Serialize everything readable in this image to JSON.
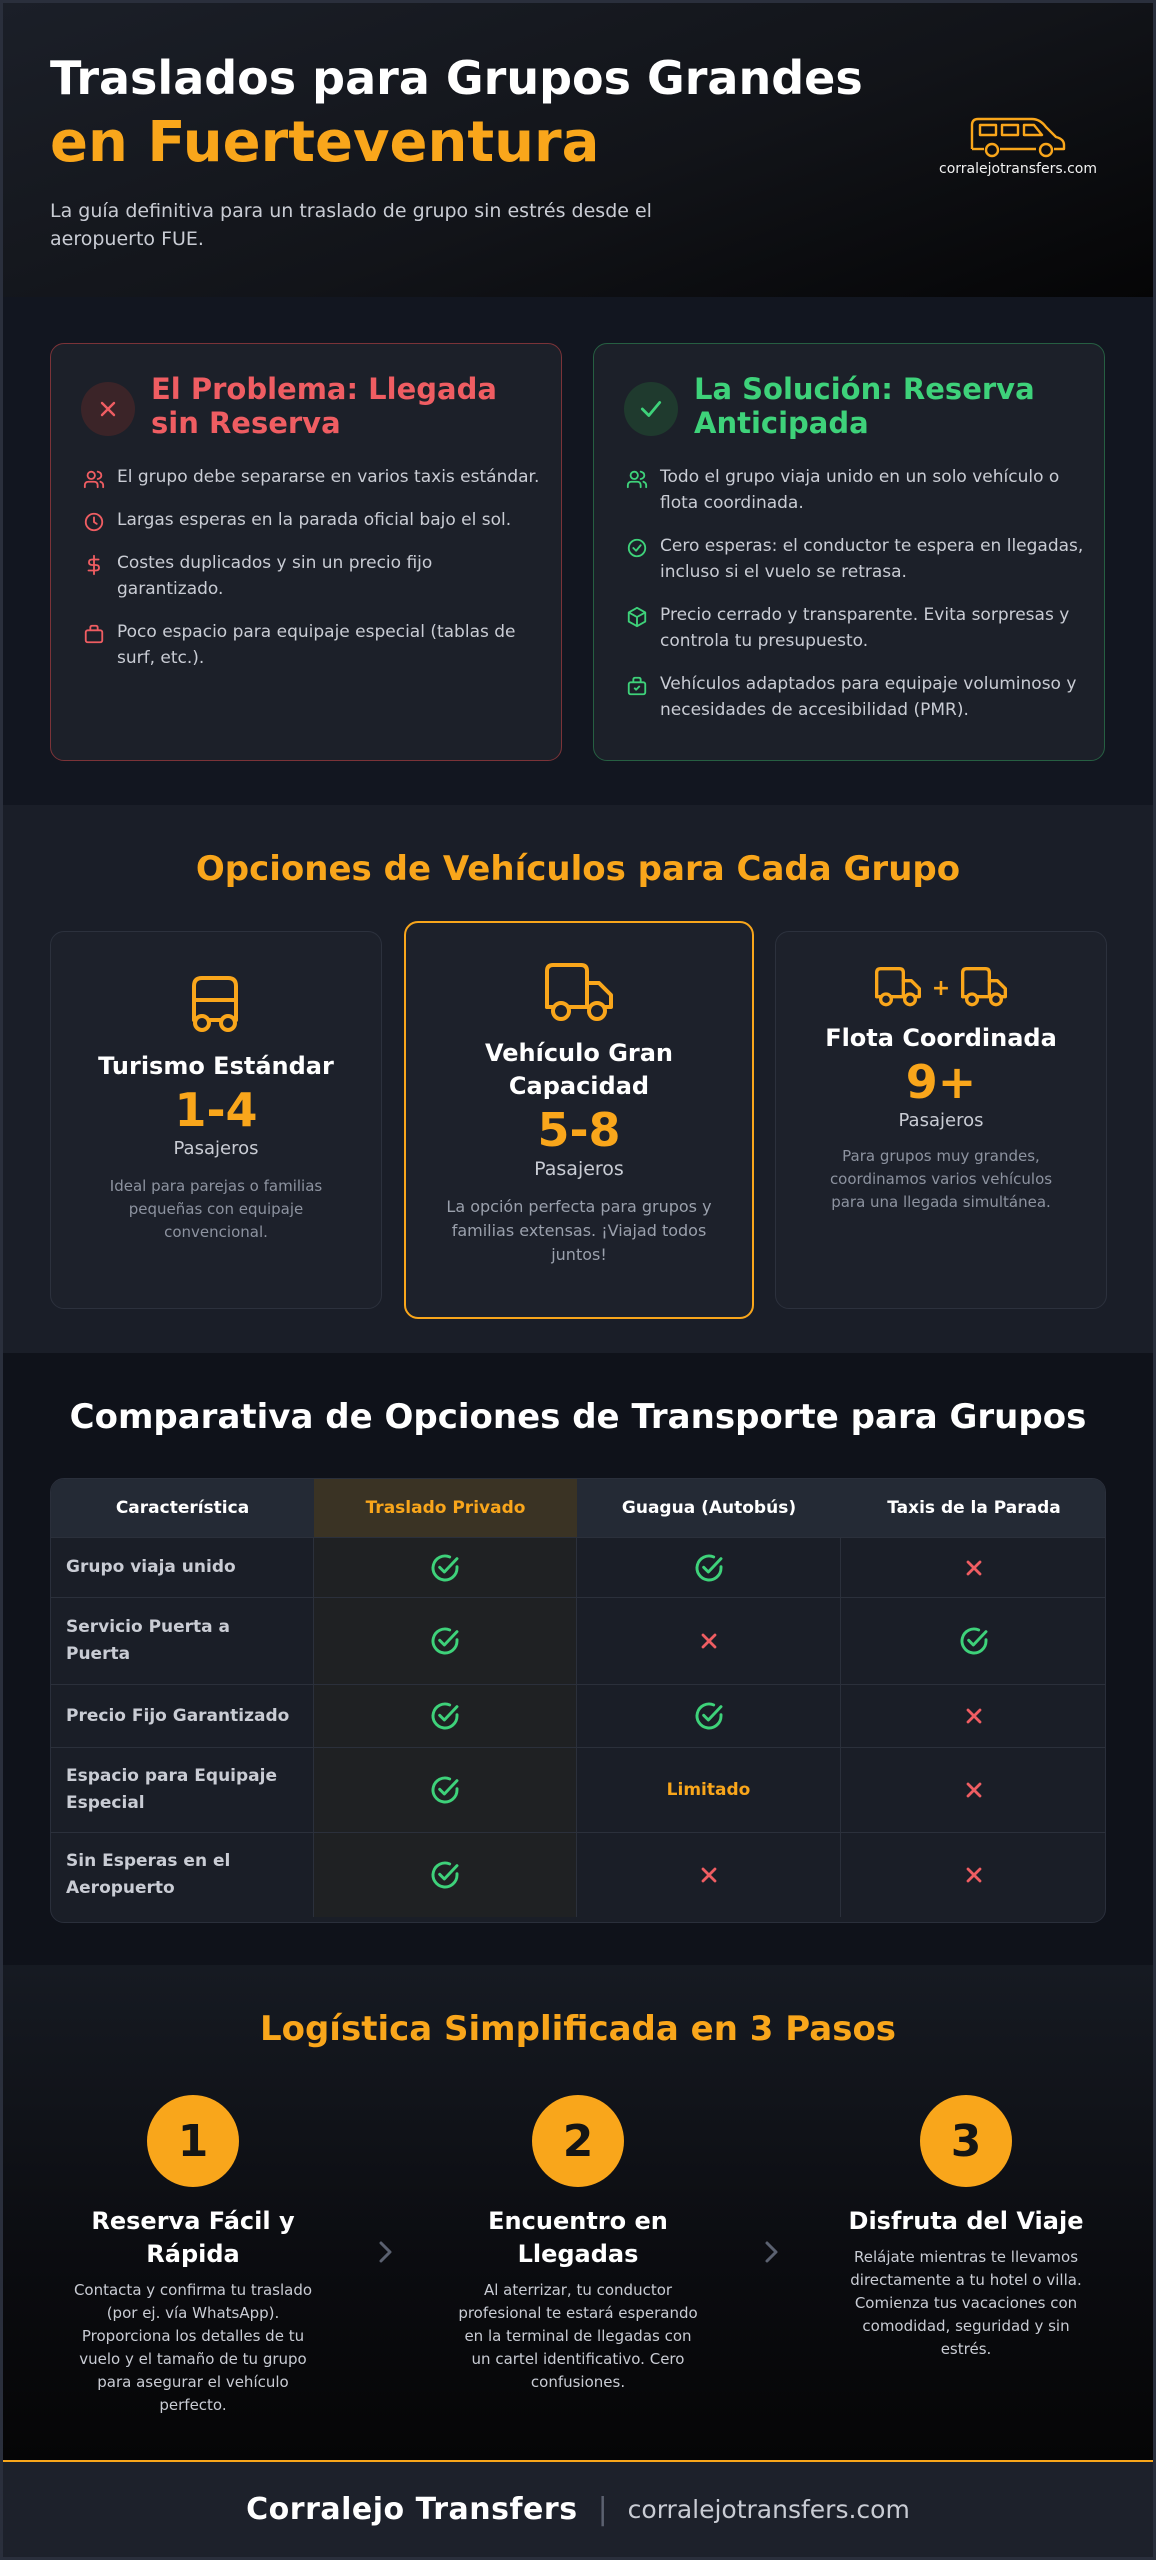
{
  "colors": {
    "accent": "#f9a61b",
    "problem": "#ef5d62",
    "solution": "#3ed27a",
    "background": "#151923"
  },
  "header": {
    "title_line1": "Traslados para Grupos Grandes",
    "title_line2": "en Fuerteventura",
    "subtitle": "La guía definitiva para un traslado de grupo sin estrés desde el aeropuerto FUE.",
    "logo_icon": "van-icon",
    "logo_url": "corralejotransfers.com"
  },
  "problem": {
    "badge_icon": "x-icon",
    "title": "El Problema: Llegada sin Reserva",
    "items": [
      {
        "icon": "users-icon",
        "text": "El grupo debe separarse en varios taxis estándar."
      },
      {
        "icon": "clock-icon",
        "text": "Largas esperas en la parada oficial bajo el sol."
      },
      {
        "icon": "dollar-icon",
        "text": "Costes duplicados y sin un precio fijo garantizado."
      },
      {
        "icon": "luggage-icon",
        "text": "Poco espacio para equipaje especial (tablas de surf, etc.)."
      }
    ]
  },
  "solution": {
    "badge_icon": "check-icon",
    "title": "La Solución: Reserva Anticipada",
    "items": [
      {
        "icon": "users-icon",
        "text": "Todo el grupo viaja unido en un solo vehículo o flota coordinada."
      },
      {
        "icon": "check-circle-icon",
        "text": "Cero esperas: el conductor te espera en llegadas, incluso si el vuelo se retrasa."
      },
      {
        "icon": "package-icon",
        "text": "Precio cerrado y transparente. Evita sorpresas y controla tu presupuesto."
      },
      {
        "icon": "luggage-icon",
        "text": "Vehículos adaptados para equipaje voluminoso y necesidades de accesibilidad (PMR)."
      }
    ]
  },
  "vehicles": {
    "heading": "Opciones de Vehículos para Cada Grupo",
    "cards": [
      {
        "icon": "car-icon",
        "name": "Turismo Estándar",
        "capacity": "1-4",
        "unit": "Pasajeros",
        "description": "Ideal para parejas o familias pequeñas con equipaje convencional."
      },
      {
        "icon": "truck-icon",
        "name": "Vehículo Gran Capacidad",
        "capacity": "5-8",
        "unit": "Pasajeros",
        "description": "La opción perfecta para grupos y familias extensas. ¡Viajad todos juntos!"
      },
      {
        "icon": "fleet-icon",
        "plus": "+",
        "name": "Flota Coordinada",
        "capacity": "9+",
        "unit": "Pasajeros",
        "description": "Para grupos muy grandes, coordinamos varios vehículos para una llegada simultánea."
      }
    ]
  },
  "comparison": {
    "heading": "Comparativa de Opciones de Transporte para Grupos",
    "columns": [
      "Característica",
      "Traslado Privado",
      "Guagua (Autobús)",
      "Taxis de la Parada"
    ],
    "rows": [
      {
        "label": "Grupo viaja unido",
        "values": [
          "yes",
          "yes",
          "no"
        ]
      },
      {
        "label": "Servicio Puerta a Puerta",
        "values": [
          "yes",
          "no",
          "yes"
        ]
      },
      {
        "label": "Precio Fijo Garantizado",
        "values": [
          "yes",
          "yes",
          "no"
        ]
      },
      {
        "label": "Espacio para Equipaje Especial",
        "values": [
          "yes",
          "Limitado",
          "no"
        ]
      },
      {
        "label": "Sin Esperas en el Aeropuerto",
        "values": [
          "yes",
          "no",
          "no"
        ]
      }
    ]
  },
  "steps": {
    "heading": "Logística Simplificada en 3 Pasos",
    "items": [
      {
        "number": "1",
        "title": "Reserva Fácil y Rápida",
        "description": "Contacta y confirma tu traslado (por ej. vía WhatsApp). Proporciona los detalles de tu vuelo y el tamaño de tu grupo para asegurar el vehículo perfecto."
      },
      {
        "number": "2",
        "title": "Encuentro en Llegadas",
        "description": "Al aterrizar, tu conductor profesional te estará esperando en la terminal de llegadas con un cartel identificativo. Cero confusiones."
      },
      {
        "number": "3",
        "title": "Disfruta del Viaje",
        "description": "Relájate mientras te llevamos directamente a tu hotel o villa. Comienza tus vacaciones con comodidad, seguridad y sin estrés."
      }
    ]
  },
  "footer": {
    "brand": "Corralejo Transfers",
    "separator": "|",
    "url": "corralejotransfers.com"
  }
}
